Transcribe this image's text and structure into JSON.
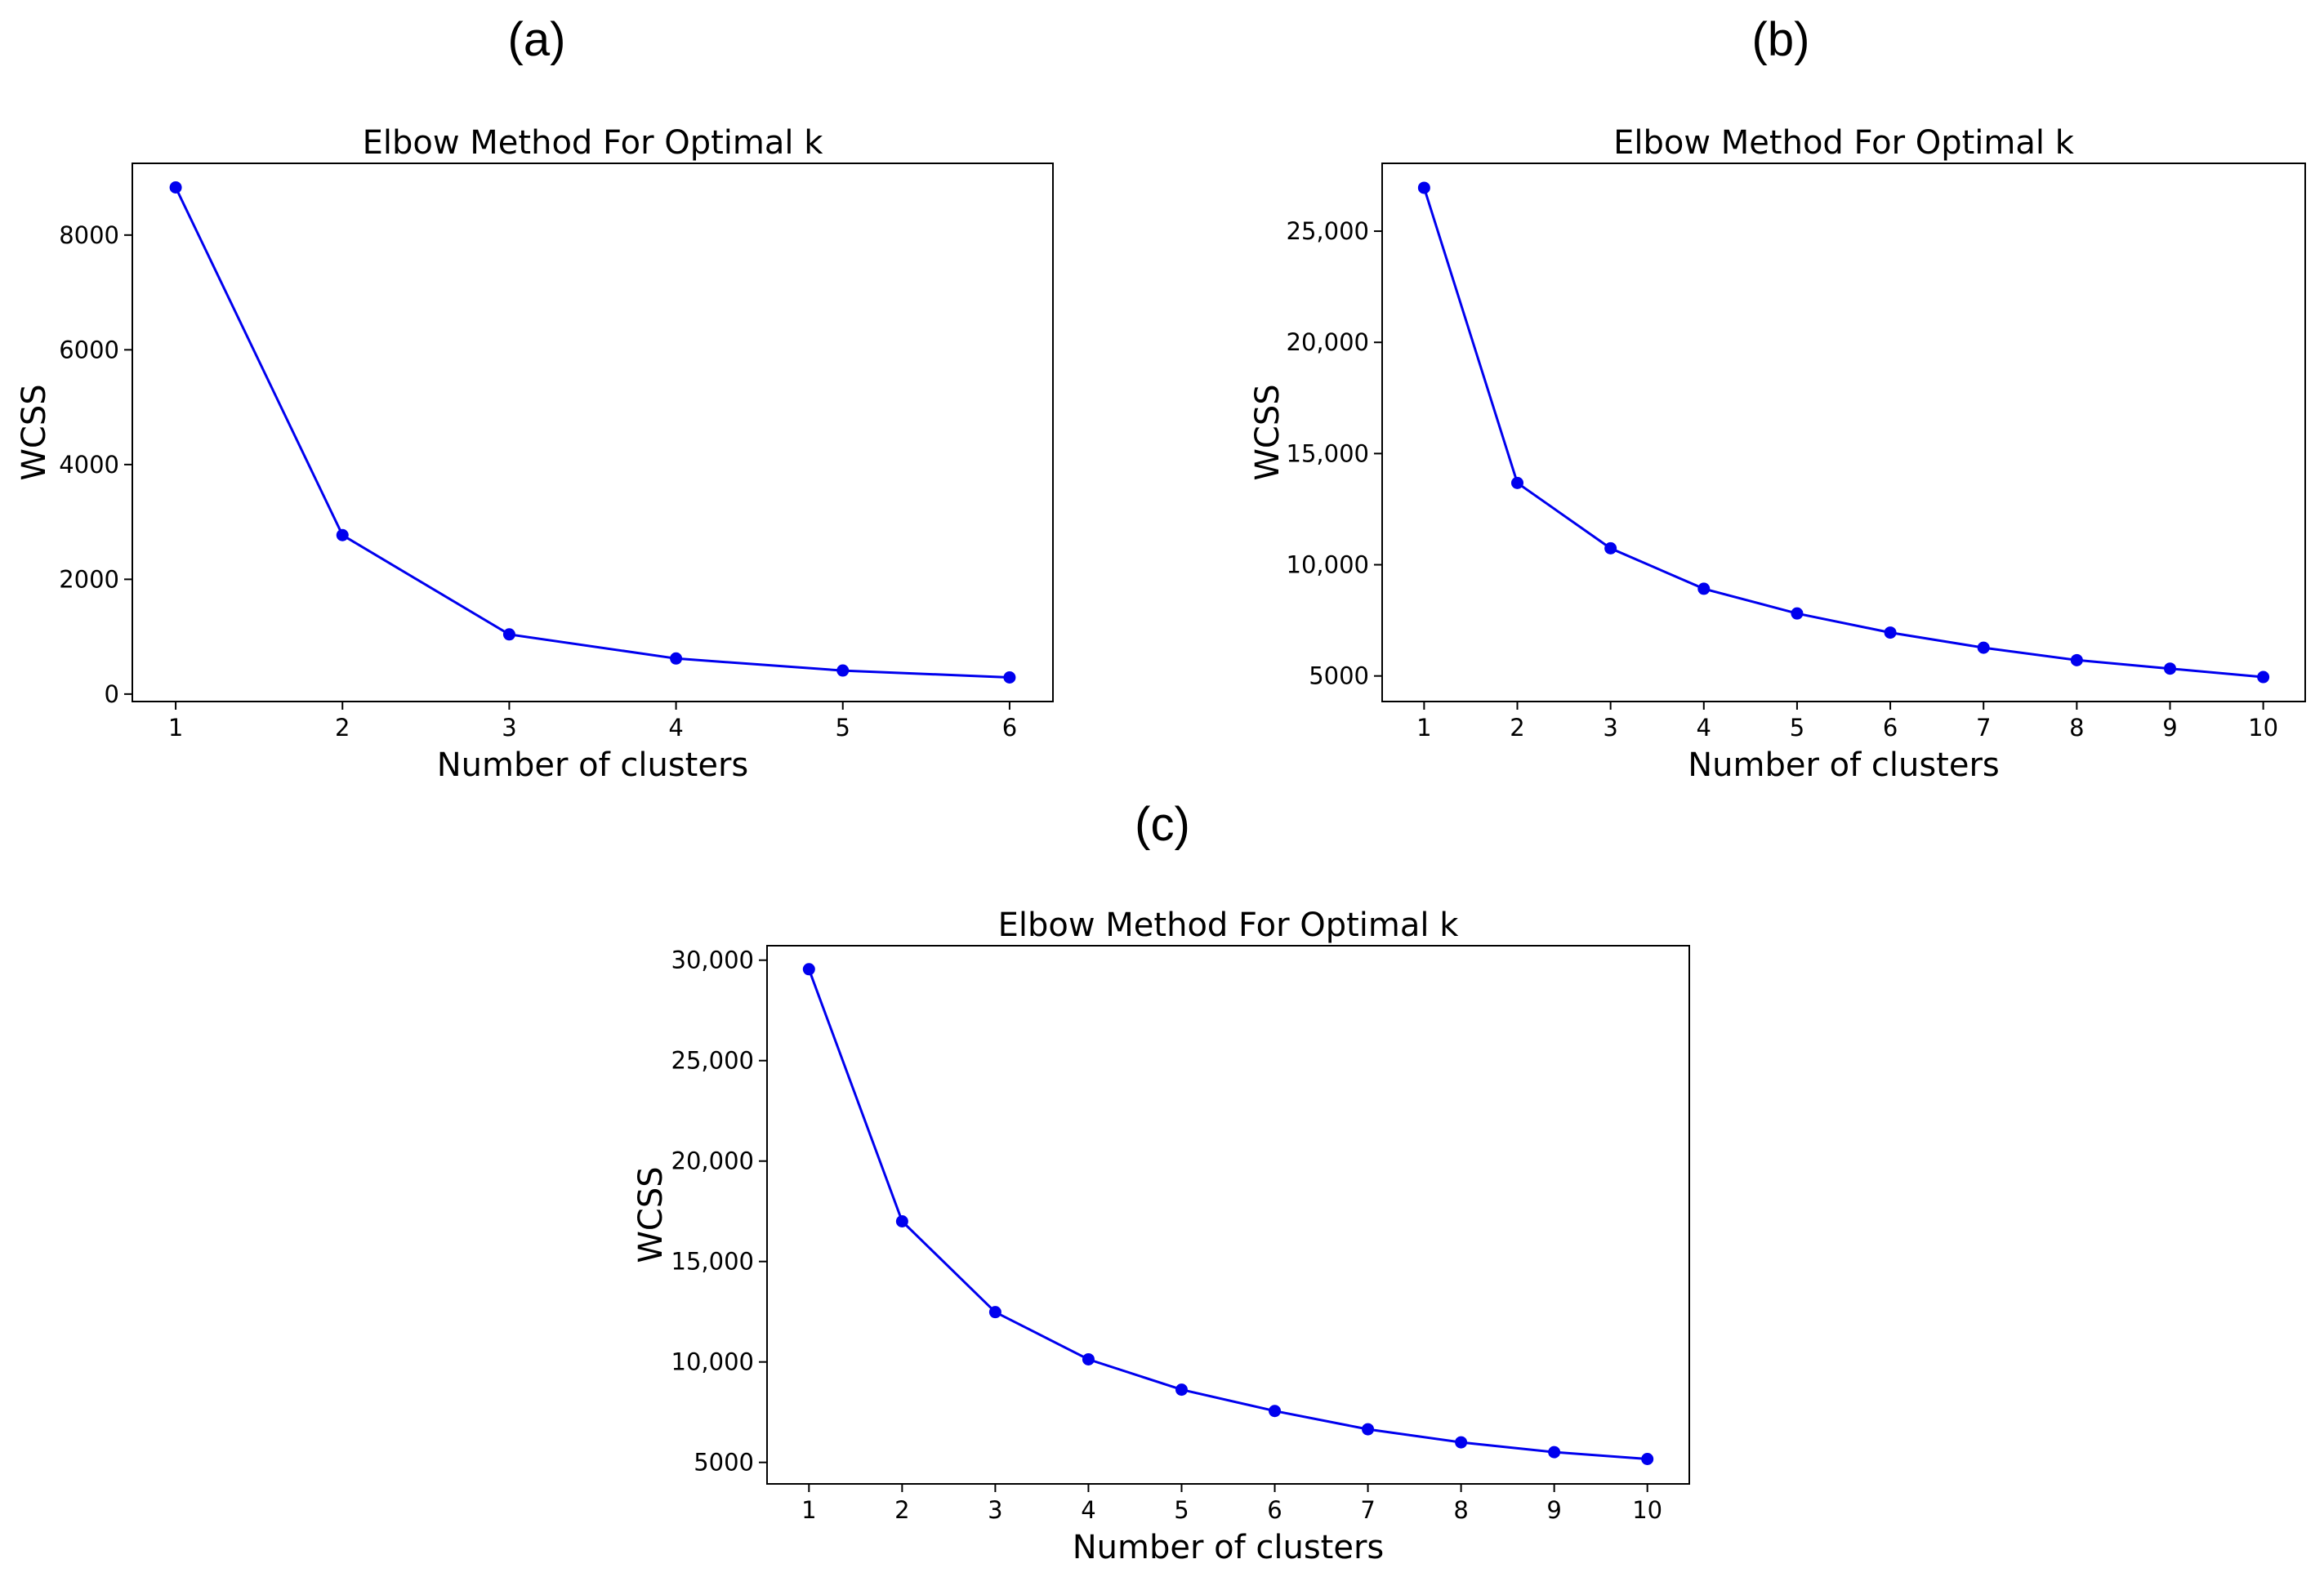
{
  "colors": {
    "series": "#0000ee",
    "axes": "#000000",
    "background": "#ffffff"
  },
  "chart_data": [
    {
      "type": "line",
      "panel_label": "(a)",
      "title": "Elbow Method For Optimal k",
      "xlabel": "Number of clusters",
      "ylabel": "WCSS",
      "x": [
        1,
        2,
        3,
        4,
        5,
        6
      ],
      "series": [
        {
          "values": [
            8830,
            2770,
            1040,
            620,
            410,
            290
          ],
          "marker": "circle"
        }
      ],
      "xlim": [
        0.74,
        6.26
      ],
      "ylim": [
        -130,
        9250
      ],
      "xticks": [
        1,
        2,
        3,
        4,
        5,
        6
      ],
      "xtick_labels": [
        "1",
        "2",
        "3",
        "4",
        "5",
        "6"
      ],
      "yticks": [
        0,
        2000,
        4000,
        6000,
        8000
      ],
      "ytick_labels": [
        "0",
        "2000",
        "4000",
        "6000",
        "8000"
      ],
      "grid": false,
      "legend": false
    },
    {
      "type": "line",
      "panel_label": "(b)",
      "title": "Elbow Method For Optimal k",
      "xlabel": "Number of clusters",
      "ylabel": "WCSS",
      "x": [
        1,
        2,
        3,
        4,
        5,
        6,
        7,
        8,
        9,
        10
      ],
      "series": [
        {
          "values": [
            26950,
            13680,
            10740,
            8920,
            7810,
            6950,
            6270,
            5710,
            5330,
            4950
          ],
          "marker": "circle"
        }
      ],
      "xlim": [
        0.55,
        10.45
      ],
      "ylim": [
        3850,
        28050
      ],
      "xticks": [
        1,
        2,
        3,
        4,
        5,
        6,
        7,
        8,
        9,
        10
      ],
      "xtick_labels": [
        "1",
        "2",
        "3",
        "4",
        "5",
        "6",
        "7",
        "8",
        "9",
        "10"
      ],
      "yticks": [
        5000,
        10000,
        15000,
        20000,
        25000
      ],
      "ytick_labels": [
        "5000",
        "10,000",
        "15,000",
        "20,000",
        "25,000"
      ],
      "grid": false,
      "legend": false
    },
    {
      "type": "line",
      "panel_label": "(c)",
      "title": "Elbow Method For Optimal k",
      "xlabel": "Number of clusters",
      "ylabel": "WCSS",
      "x": [
        1,
        2,
        3,
        4,
        5,
        6,
        7,
        8,
        9,
        10
      ],
      "series": [
        {
          "values": [
            29550,
            17000,
            12480,
            10130,
            8620,
            7560,
            6650,
            6000,
            5510,
            5170
          ],
          "marker": "circle"
        }
      ],
      "xlim": [
        0.55,
        10.45
      ],
      "ylim": [
        3930,
        30720
      ],
      "xticks": [
        1,
        2,
        3,
        4,
        5,
        6,
        7,
        8,
        9,
        10
      ],
      "xtick_labels": [
        "1",
        "2",
        "3",
        "4",
        "5",
        "6",
        "7",
        "8",
        "9",
        "10"
      ],
      "yticks": [
        5000,
        10000,
        15000,
        20000,
        25000,
        30000
      ],
      "ytick_labels": [
        "5000",
        "10,000",
        "15,000",
        "20,000",
        "25,000",
        "30,000"
      ],
      "grid": false,
      "legend": false
    }
  ]
}
